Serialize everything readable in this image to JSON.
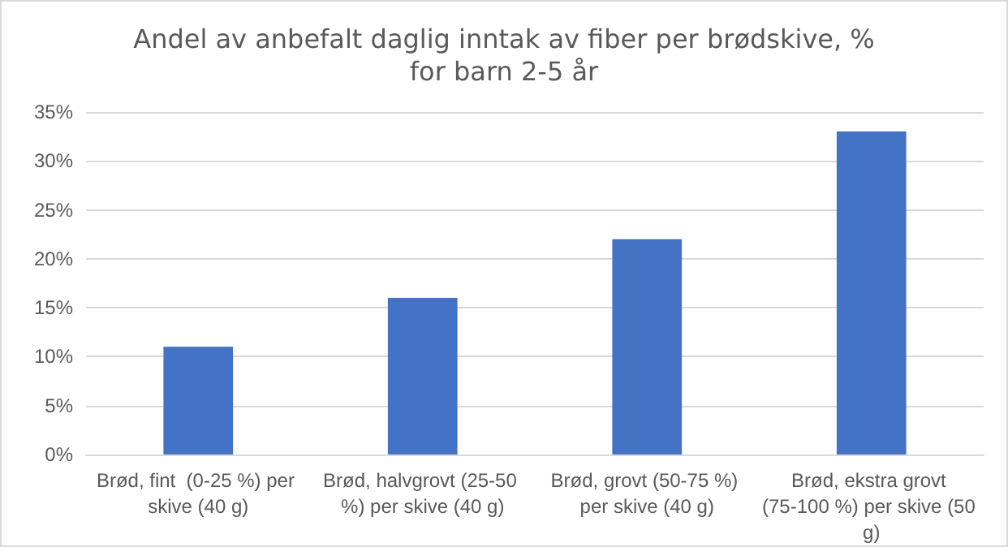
{
  "chart_data": {
    "type": "bar",
    "title": "Andel av anbefalt daglig inntak av fiber per brødskive, %",
    "subtitle": "for barn 2-5 år",
    "categories": [
      "Brød, fint  (0-25 %) per skive (40 g)",
      "Brød, halvgrovt (25-50 %) per skive (40 g)",
      "Brød, grovt (50-75 %) per skive (40 g)",
      "Brød, ekstra grovt (75-100 %) per skive (50 g)"
    ],
    "values": [
      11,
      16,
      22,
      33
    ],
    "color": "#4472c4",
    "ylim": [
      0,
      35
    ],
    "yticks": [
      {
        "value": 0,
        "label": "0%"
      },
      {
        "value": 5,
        "label": "5%"
      },
      {
        "value": 10,
        "label": "10%"
      },
      {
        "value": 15,
        "label": "15%"
      },
      {
        "value": 20,
        "label": "20%"
      },
      {
        "value": 25,
        "label": "25%"
      },
      {
        "value": 30,
        "label": "30%"
      },
      {
        "value": 35,
        "label": "35%"
      }
    ],
    "grid": true
  }
}
